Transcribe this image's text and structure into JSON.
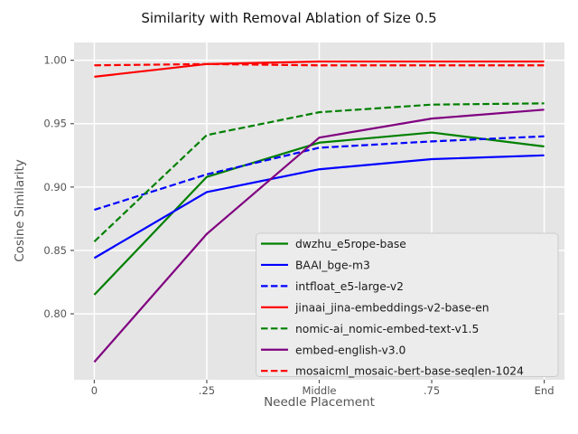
{
  "chart_data": {
    "type": "line",
    "title": "Similarity with Removal Ablation of Size 0.5",
    "xlabel": "Needle Placement",
    "ylabel": "Cosine Similarity",
    "categories": [
      "0",
      ".25",
      "Middle",
      ".75",
      "End"
    ],
    "y_tick_labels": [
      "0.80",
      "0.85",
      "0.90",
      "0.95",
      "1.00"
    ],
    "y_tick_values": [
      0.8,
      0.85,
      0.9,
      0.95,
      1.0
    ],
    "ylim": [
      0.748,
      1.014
    ],
    "grid": true,
    "legend_position": "lower right",
    "plot_bg": "#e5e5e5",
    "grid_color": "#ffffff",
    "tick_color": "#555555",
    "series": [
      {
        "name": "dwzhu_e5rope-base",
        "color": "#008000",
        "style": "solid",
        "values": [
          0.815,
          0.908,
          0.935,
          0.943,
          0.932
        ]
      },
      {
        "name": "BAAI_bge-m3",
        "color": "#0000ff",
        "style": "solid",
        "values": [
          0.844,
          0.896,
          0.914,
          0.922,
          0.925
        ]
      },
      {
        "name": "intfloat_e5-large-v2",
        "color": "#0000ff",
        "style": "dashed",
        "values": [
          0.882,
          0.91,
          0.931,
          0.936,
          0.94
        ]
      },
      {
        "name": "jinaai_jina-embeddings-v2-base-en",
        "color": "#ff0000",
        "style": "solid",
        "values": [
          0.987,
          0.997,
          0.999,
          0.999,
          0.999
        ]
      },
      {
        "name": "nomic-ai_nomic-embed-text-v1.5",
        "color": "#008000",
        "style": "dashed",
        "values": [
          0.857,
          0.941,
          0.959,
          0.965,
          0.966
        ]
      },
      {
        "name": "embed-english-v3.0",
        "color": "#800080",
        "style": "solid",
        "values": [
          0.762,
          0.863,
          0.939,
          0.954,
          0.961
        ]
      },
      {
        "name": "mosaicml_mosaic-bert-base-seqlen-1024",
        "color": "#ff0000",
        "style": "dashed",
        "values": [
          0.996,
          0.997,
          0.996,
          0.996,
          0.996
        ]
      }
    ]
  }
}
